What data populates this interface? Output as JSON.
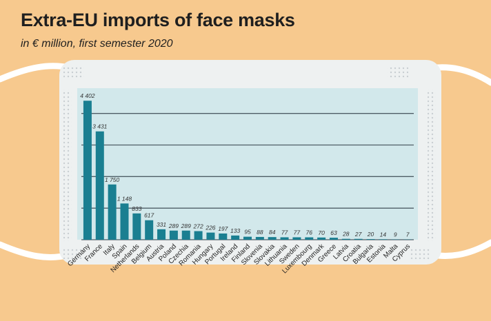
{
  "title": "Extra-EU imports of face masks",
  "subtitle": "in € million, first semester 2020",
  "colors": {
    "background": "#f7c98e",
    "mask": "#eef1f1",
    "panel": "#d2e8eb",
    "bar": "#1a7f91",
    "gridline": "#4e5d66"
  },
  "chart_data": {
    "type": "bar",
    "title": "Extra-EU imports of face masks",
    "subtitle": "in € million, first semester 2020",
    "xlabel": "",
    "ylabel": "",
    "ylim": [
      0,
      4800
    ],
    "grid": true,
    "categories": [
      "Germany",
      "France",
      "Italy",
      "Spain",
      "Netherlands",
      "Belgium",
      "Austria",
      "Poland",
      "Czechia",
      "Romania",
      "Hungary",
      "Portugal",
      "Ireland",
      "Finland",
      "Slovenia",
      "Slovakia",
      "Lithuania",
      "Sweden",
      "Luxembourg",
      "Denmark",
      "Greece",
      "Latvia",
      "Croatia",
      "Bulgaria",
      "Estonia",
      "Malta",
      "Cyprus"
    ],
    "values": [
      4402,
      3431,
      1750,
      1148,
      833,
      617,
      331,
      289,
      289,
      272,
      226,
      197,
      133,
      95,
      88,
      84,
      77,
      77,
      76,
      70,
      63,
      28,
      27,
      20,
      14,
      9,
      7
    ],
    "value_labels": [
      "4 402",
      "3 431",
      "1 750",
      "1 148",
      "833",
      "617",
      "331",
      "289",
      "289",
      "272",
      "226",
      "197",
      "133",
      "95",
      "88",
      "84",
      "77",
      "77",
      "76",
      "70",
      "63",
      "28",
      "27",
      "20",
      "14",
      "9",
      "7"
    ]
  }
}
